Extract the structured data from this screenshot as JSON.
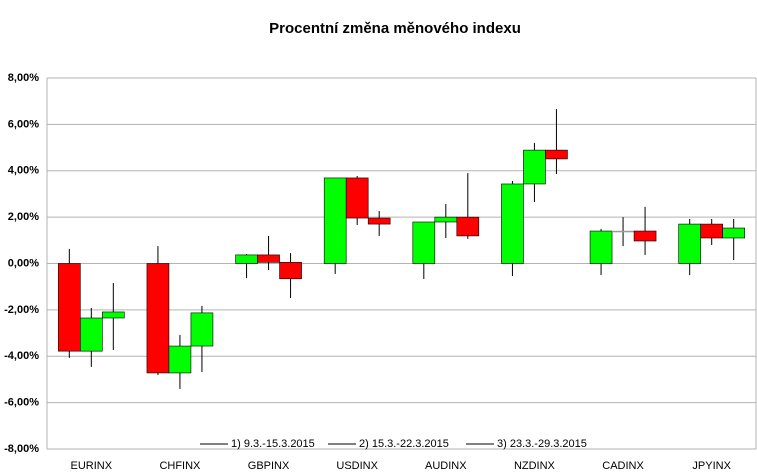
{
  "chart_data": {
    "type": "candlestick",
    "title": "Procentní změna měnového indexu",
    "categories": [
      "EURINX",
      "CHFINX",
      "GBPINX",
      "USDINX",
      "AUDINX",
      "NZDINX",
      "CADINX",
      "JPYINX"
    ],
    "up_color": "#00ff00",
    "down_color": "#ff0000",
    "grid": true,
    "legend": "bottom",
    "ylim": [
      -8,
      8
    ],
    "yticks": [
      {
        "value": -8,
        "label": "-8,00%"
      },
      {
        "value": -6,
        "label": "-6,00%"
      },
      {
        "value": -4,
        "label": "-4,00%"
      },
      {
        "value": -2,
        "label": "-2,00%"
      },
      {
        "value": 0,
        "label": "0,00%"
      },
      {
        "value": 2,
        "label": "2,00%"
      },
      {
        "value": 4,
        "label": "4,00%"
      },
      {
        "value": 6,
        "label": "6,00%"
      },
      {
        "value": 8,
        "label": "8,00%"
      }
    ],
    "series": [
      {
        "name": "1) 9.3.-15.3.2015",
        "open": [
          0,
          0,
          0,
          0,
          0,
          0,
          0,
          0
        ],
        "high": [
          0.63,
          0.75,
          0.41,
          3.69,
          1.79,
          3.56,
          1.49,
          1.92
        ],
        "low": [
          -4.07,
          -4.81,
          -0.63,
          -0.45,
          -0.67,
          -0.54,
          -0.5,
          -0.5
        ],
        "close": [
          -3.78,
          -4.72,
          0.37,
          3.69,
          1.79,
          3.43,
          1.4,
          1.7
        ]
      },
      {
        "name": "2) 15.3.-22.3.2015",
        "open": [
          -3.78,
          -4.72,
          0.37,
          3.69,
          1.79,
          3.43,
          1.4,
          1.7
        ],
        "high": [
          -1.92,
          -3.08,
          1.19,
          3.77,
          2.57,
          5.2,
          2.0,
          1.92
        ],
        "low": [
          -4.46,
          -5.41,
          -0.28,
          1.66,
          1.1,
          2.65,
          0.75,
          0.8
        ],
        "close": [
          -2.35,
          -3.56,
          0.05,
          1.96,
          2.0,
          4.89,
          1.4,
          1.1
        ]
      },
      {
        "name": "3) 23.3.-29.3.2015",
        "open": [
          -2.35,
          -3.56,
          0.05,
          1.96,
          2.0,
          4.89,
          1.4,
          1.1
        ],
        "high": [
          -0.84,
          -1.83,
          0.45,
          2.26,
          3.9,
          6.66,
          2.44,
          1.92
        ],
        "low": [
          -3.73,
          -4.68,
          -1.49,
          1.19,
          1.06,
          3.86,
          0.37,
          0.15
        ],
        "close": [
          -2.09,
          -2.13,
          -0.66,
          1.7,
          1.19,
          4.51,
          0.97,
          1.53
        ]
      }
    ]
  }
}
